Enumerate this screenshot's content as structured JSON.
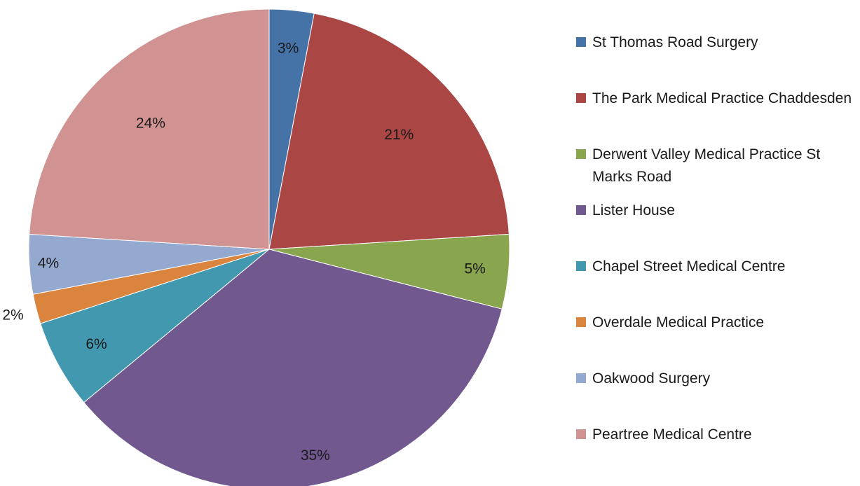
{
  "chart_data": {
    "type": "pie",
    "start_angle_deg": 0,
    "direction": "clockwise",
    "legend_position": "right",
    "slices": [
      {
        "label": "St Thomas Road Surgery",
        "value": 3,
        "value_label": "3%",
        "color": "#4572a7"
      },
      {
        "label": "The Park Medical Practice Chaddesden",
        "value": 21,
        "value_label": "21%",
        "color": "#aa4643"
      },
      {
        "label": "Derwent Valley Medical Practice St Marks Road",
        "value": 5,
        "value_label": "5%",
        "color": "#89a54e"
      },
      {
        "label": "Lister House",
        "value": 35,
        "value_label": "35%",
        "color": "#71588f"
      },
      {
        "label": "Chapel Street Medical Centre",
        "value": 6,
        "value_label": "6%",
        "color": "#4198af"
      },
      {
        "label": "Overdale Medical Practice",
        "value": 2,
        "value_label": "2%",
        "color": "#db843d"
      },
      {
        "label": "Oakwood Surgery",
        "value": 4,
        "value_label": "4%",
        "color": "#93a9cf"
      },
      {
        "label": "Peartree Medical Centre",
        "value": 24,
        "value_label": "24%",
        "color": "#d19392"
      }
    ]
  }
}
